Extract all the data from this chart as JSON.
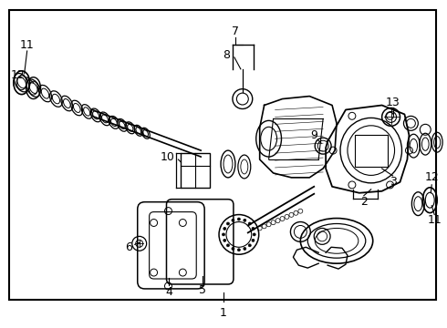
{
  "bg_color": "#ffffff",
  "line_color": "#000000",
  "text_color": "#000000",
  "fig_width": 4.9,
  "fig_height": 3.6,
  "dpi": 100
}
